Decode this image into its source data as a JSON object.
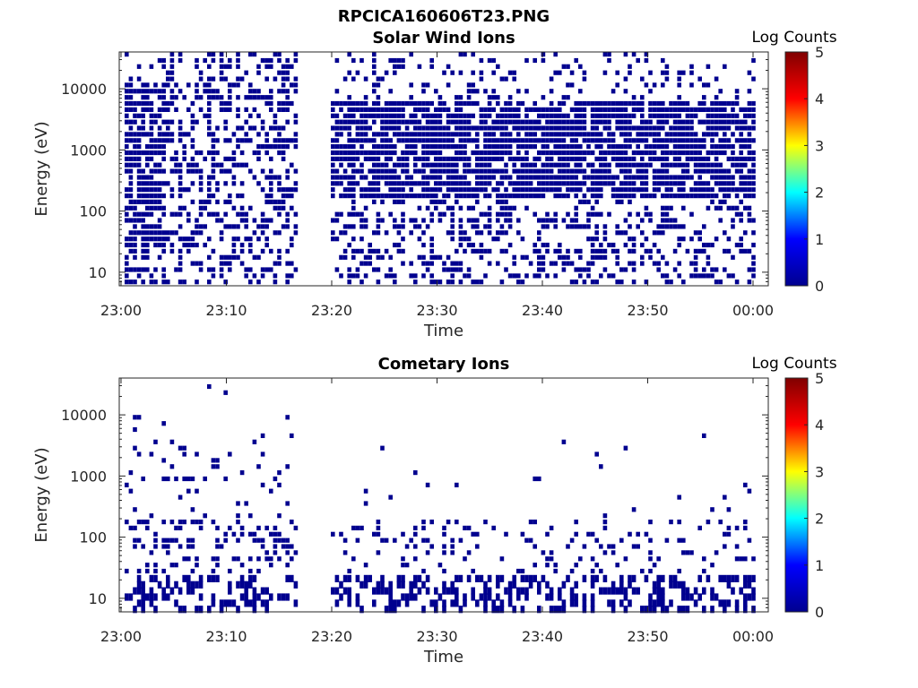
{
  "figure_title": "RPCICA160606T23.PNG",
  "colormap": [
    "#00008f",
    "#0000ff",
    "#00ffff",
    "#ffff00",
    "#ff0000",
    "#800000"
  ],
  "chart_data": [
    {
      "type": "heatmap",
      "title": "Solar Wind Ions",
      "xlabel": "Time",
      "ylabel": "Energy (eV)",
      "xticks": [
        "23:00",
        "23:10",
        "23:20",
        "23:30",
        "23:40",
        "23:50",
        "00:00"
      ],
      "xlim_minutes": [
        0,
        60
      ],
      "yticks": [
        "10",
        "100",
        "1000",
        "10000"
      ],
      "ylim_eV": [
        6,
        40000
      ],
      "yscale": "log",
      "colorbar_label": "Log Counts",
      "colorbar_ticks": [
        "0",
        "1",
        "2",
        "3",
        "4",
        "5"
      ],
      "colorbar_range": [
        0,
        5
      ],
      "data_gaps_minutes": [
        [
          16.5,
          19.7
        ]
      ],
      "counts_range_log": [
        0,
        0.5
      ],
      "bulk_energy_range_eV": [
        150,
        7000
      ]
    },
    {
      "type": "heatmap",
      "title": "Cometary Ions",
      "xlabel": "Time",
      "ylabel": "Energy (eV)",
      "xticks": [
        "23:00",
        "23:10",
        "23:20",
        "23:30",
        "23:40",
        "23:50",
        "00:00"
      ],
      "xlim_minutes": [
        0,
        60
      ],
      "yticks": [
        "10",
        "100",
        "1000",
        "10000"
      ],
      "ylim_eV": [
        6,
        40000
      ],
      "yscale": "log",
      "colorbar_label": "Log Counts",
      "colorbar_ticks": [
        "0",
        "1",
        "2",
        "3",
        "4",
        "5"
      ],
      "colorbar_range": [
        0,
        5
      ],
      "data_gaps_minutes": [
        [
          16.5,
          19.7
        ]
      ],
      "counts_range_log": [
        0,
        0.3
      ],
      "bulk_energy_range_eV": [
        6,
        150
      ]
    }
  ]
}
